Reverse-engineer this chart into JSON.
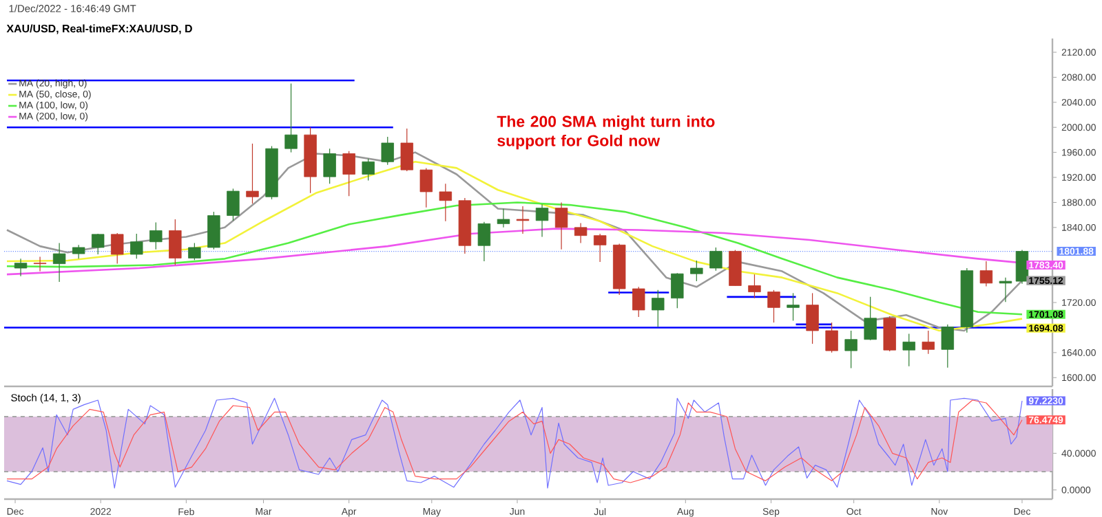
{
  "chart_data": [
    {
      "type": "candlestick",
      "title": "XAU/USD, Real-timeFX:XAU/USD, D",
      "annotations": [
        "1/Dec/2022 - 16:46:49 GMT",
        "The 200 SMA might turn into support for Gold now"
      ],
      "x": [
        "2021-12-03",
        "2021-12-10",
        "2021-12-17",
        "2021-12-24",
        "2021-12-31",
        "2022-01-07",
        "2022-01-14",
        "2022-01-21",
        "2022-01-28",
        "2022-02-04",
        "2022-02-11",
        "2022-02-18",
        "2022-02-25",
        "2022-03-04",
        "2022-03-11",
        "2022-03-18",
        "2022-03-25",
        "2022-04-01",
        "2022-04-08",
        "2022-04-15",
        "2022-04-22",
        "2022-04-29",
        "2022-05-06",
        "2022-05-13",
        "2022-05-20",
        "2022-05-27",
        "2022-06-03",
        "2022-06-10",
        "2022-06-17",
        "2022-06-24",
        "2022-07-01",
        "2022-07-08",
        "2022-07-15",
        "2022-07-22",
        "2022-07-29",
        "2022-08-05",
        "2022-08-12",
        "2022-08-19",
        "2022-08-26",
        "2022-09-02",
        "2022-09-09",
        "2022-09-16",
        "2022-09-23",
        "2022-09-30",
        "2022-10-07",
        "2022-10-14",
        "2022-10-21",
        "2022-10-28",
        "2022-11-04",
        "2022-11-11",
        "2022-11-18",
        "2022-11-25",
        "2022-12-01"
      ],
      "ohlc": [
        [
          1775,
          1790,
          1762,
          1783
        ],
        [
          1783,
          1793,
          1770,
          1782
        ],
        [
          1782,
          1815,
          1753,
          1798
        ],
        [
          1798,
          1812,
          1790,
          1808
        ],
        [
          1808,
          1830,
          1797,
          1829
        ],
        [
          1829,
          1831,
          1782,
          1797
        ],
        [
          1797,
          1830,
          1790,
          1817
        ],
        [
          1817,
          1848,
          1805,
          1835
        ],
        [
          1835,
          1853,
          1780,
          1791
        ],
        [
          1791,
          1815,
          1788,
          1808
        ],
        [
          1808,
          1865,
          1805,
          1859
        ],
        [
          1859,
          1902,
          1851,
          1898
        ],
        [
          1898,
          1974,
          1878,
          1889
        ],
        [
          1889,
          1970,
          1885,
          1966
        ],
        [
          1966,
          2070,
          1960,
          1988
        ],
        [
          1988,
          2000,
          1895,
          1921
        ],
        [
          1921,
          1966,
          1910,
          1958
        ],
        [
          1958,
          1962,
          1890,
          1925
        ],
        [
          1925,
          1950,
          1915,
          1945
        ],
        [
          1945,
          1985,
          1940,
          1975
        ],
        [
          1975,
          1998,
          1930,
          1932
        ],
        [
          1932,
          1935,
          1872,
          1897
        ],
        [
          1897,
          1910,
          1850,
          1883
        ],
        [
          1883,
          1887,
          1798,
          1811
        ],
        [
          1811,
          1849,
          1786,
          1846
        ],
        [
          1846,
          1870,
          1840,
          1853
        ],
        [
          1853,
          1874,
          1830,
          1851
        ],
        [
          1851,
          1877,
          1825,
          1871
        ],
        [
          1871,
          1880,
          1805,
          1840
        ],
        [
          1840,
          1847,
          1815,
          1827
        ],
        [
          1827,
          1830,
          1785,
          1812
        ],
        [
          1812,
          1814,
          1732,
          1742
        ],
        [
          1742,
          1745,
          1697,
          1708
        ],
        [
          1708,
          1740,
          1681,
          1727
        ],
        [
          1727,
          1767,
          1711,
          1766
        ],
        [
          1766,
          1787,
          1754,
          1775
        ],
        [
          1775,
          1808,
          1771,
          1802
        ],
        [
          1802,
          1804,
          1747,
          1747
        ],
        [
          1747,
          1765,
          1727,
          1737
        ],
        [
          1737,
          1740,
          1688,
          1712
        ],
        [
          1712,
          1735,
          1691,
          1716
        ],
        [
          1716,
          1735,
          1654,
          1675
        ],
        [
          1675,
          1688,
          1640,
          1643
        ],
        [
          1643,
          1675,
          1615,
          1661
        ],
        [
          1661,
          1729,
          1660,
          1695
        ],
        [
          1695,
          1698,
          1642,
          1644
        ],
        [
          1644,
          1670,
          1618,
          1657
        ],
        [
          1657,
          1675,
          1638,
          1645
        ],
        [
          1645,
          1685,
          1616,
          1681
        ],
        [
          1681,
          1775,
          1672,
          1771
        ],
        [
          1771,
          1786,
          1746,
          1751
        ],
        [
          1751,
          1760,
          1721,
          1754
        ],
        [
          1754,
          1804,
          1750,
          1801.88
        ]
      ],
      "series": [
        {
          "type": "line",
          "name": "MA (20, high, 0)",
          "color": "#999999",
          "x": [
            "2021-11-28",
            "2021-12-10",
            "2021-12-20",
            "2022-01-05",
            "2022-01-20",
            "2022-02-01",
            "2022-02-15",
            "2022-03-01",
            "2022-03-10",
            "2022-03-20",
            "2022-04-01",
            "2022-04-15",
            "2022-04-25",
            "2022-05-10",
            "2022-05-25",
            "2022-06-10",
            "2022-06-25",
            "2022-07-10",
            "2022-07-25",
            "2022-08-05",
            "2022-08-20",
            "2022-09-05",
            "2022-09-20",
            "2022-10-05",
            "2022-10-20",
            "2022-11-01",
            "2022-11-10",
            "2022-11-20",
            "2022-12-01"
          ],
          "values": [
            1836,
            1810,
            1800,
            1812,
            1820,
            1825,
            1840,
            1890,
            1935,
            1958,
            1955,
            1945,
            1960,
            1925,
            1870,
            1865,
            1860,
            1835,
            1760,
            1745,
            1785,
            1770,
            1735,
            1690,
            1700,
            1680,
            1675,
            1705,
            1755.12
          ],
          "value_labels": [
            null,
            null,
            null,
            null,
            null,
            null,
            null,
            null,
            null,
            null,
            null,
            null,
            null,
            null,
            null,
            null,
            null,
            null,
            null,
            null,
            null,
            null,
            null,
            null,
            null,
            null,
            null,
            null,
            "1755.12"
          ]
        },
        {
          "type": "line",
          "name": "MA (50, close, 0)",
          "color": "#f2f23a",
          "x": [
            "2021-11-28",
            "2021-12-20",
            "2022-01-15",
            "2022-02-01",
            "2022-02-15",
            "2022-03-01",
            "2022-03-20",
            "2022-04-10",
            "2022-04-25",
            "2022-05-10",
            "2022-05-25",
            "2022-06-15",
            "2022-07-01",
            "2022-07-20",
            "2022-08-05",
            "2022-08-20",
            "2022-09-05",
            "2022-09-25",
            "2022-10-15",
            "2022-11-01",
            "2022-11-10",
            "2022-11-20",
            "2022-12-01"
          ],
          "values": [
            1786,
            1787,
            1800,
            1805,
            1815,
            1850,
            1895,
            1925,
            1945,
            1935,
            1900,
            1870,
            1850,
            1810,
            1785,
            1770,
            1760,
            1735,
            1700,
            1675,
            1680,
            1686,
            1694.08
          ],
          "value_labels": [
            null,
            null,
            null,
            null,
            null,
            null,
            null,
            null,
            null,
            null,
            null,
            null,
            null,
            null,
            null,
            null,
            null,
            null,
            null,
            null,
            null,
            null,
            "1694.08"
          ]
        },
        {
          "type": "line",
          "name": "MA (100, low, 0)",
          "color": "#55ee44",
          "x": [
            "2021-11-28",
            "2021-12-20",
            "2022-01-20",
            "2022-02-15",
            "2022-03-10",
            "2022-04-01",
            "2022-04-20",
            "2022-05-10",
            "2022-06-01",
            "2022-06-20",
            "2022-07-10",
            "2022-08-01",
            "2022-08-20",
            "2022-09-05",
            "2022-09-25",
            "2022-10-15",
            "2022-11-01",
            "2022-11-15",
            "2022-12-01"
          ],
          "values": [
            1778,
            1777,
            1780,
            1790,
            1815,
            1845,
            1860,
            1875,
            1880,
            1876,
            1865,
            1840,
            1815,
            1790,
            1760,
            1740,
            1720,
            1705,
            1701.08
          ],
          "value_labels": [
            null,
            null,
            null,
            null,
            null,
            null,
            null,
            null,
            null,
            null,
            null,
            null,
            null,
            null,
            null,
            null,
            null,
            null,
            "1701.08"
          ]
        },
        {
          "type": "line",
          "name": "MA (200, low, 0)",
          "color": "#ee55ee",
          "x": [
            "2021-11-28",
            "2022-01-15",
            "2022-03-01",
            "2022-04-15",
            "2022-05-15",
            "2022-06-15",
            "2022-07-15",
            "2022-08-15",
            "2022-09-15",
            "2022-10-15",
            "2022-11-15",
            "2022-12-01"
          ],
          "values": [
            1765,
            1775,
            1790,
            1810,
            1830,
            1838,
            1836,
            1831,
            1820,
            1805,
            1790,
            1783.4
          ],
          "value_labels": [
            null,
            null,
            null,
            null,
            null,
            null,
            null,
            null,
            null,
            null,
            null,
            "1783.40"
          ]
        },
        {
          "type": "line",
          "color": "#0000ff",
          "x": [
            "2021-11-28",
            "2022-04-03"
          ],
          "values": [
            2075,
            2075
          ]
        },
        {
          "type": "line",
          "color": "#0000ff",
          "x": [
            "2021-11-28",
            "2022-04-17"
          ],
          "values": [
            2000,
            2000
          ]
        },
        {
          "type": "line",
          "color": "#0000ff",
          "x": [
            "2022-07-04",
            "2022-07-26"
          ],
          "values": [
            1736,
            1736
          ]
        },
        {
          "type": "line",
          "color": "#0000ff",
          "x": [
            "2022-08-16",
            "2022-09-10"
          ],
          "values": [
            1729,
            1729
          ]
        },
        {
          "type": "line",
          "color": "#0000ff",
          "x": [
            "2022-09-10",
            "2022-09-23"
          ],
          "values": [
            1685,
            1685
          ]
        }
      ],
      "ref_lines": [
        {
          "axis": "y",
          "value": 1680,
          "color": "#0000ff"
        },
        {
          "axis": "y",
          "value": 1801.88,
          "label": "1801.88",
          "color": "#6a8cff",
          "line_style": "dotted"
        }
      ],
      "xlim": [
        "2021-11-27",
        "2022-12-12"
      ],
      "ylim": [
        1586,
        2142
      ],
      "yticks": [
        {
          "value": 1600,
          "label": "1600.00"
        },
        {
          "value": 1640,
          "label": "1640.00"
        },
        {
          "value": 1720,
          "label": "1720.00"
        },
        {
          "value": 1840,
          "label": "1840.00"
        },
        {
          "value": 1880,
          "label": "1880.00"
        },
        {
          "value": 1920,
          "label": "1920.00"
        },
        {
          "value": 1960,
          "label": "1960.00"
        },
        {
          "value": 2000,
          "label": "2000.00"
        },
        {
          "value": 2040,
          "label": "2040.00"
        },
        {
          "value": 2080,
          "label": "2080.00"
        },
        {
          "value": 2120,
          "label": "2120.00"
        }
      ],
      "legend": "top left",
      "tick_labels": "y"
    },
    {
      "type": "line",
      "title": "Stoch (14, 1, 3)",
      "series": [
        {
          "color": "#6f6fff",
          "x": [
            "2021-11-28",
            "2021-12-03",
            "2021-12-07",
            "2021-12-11",
            "2021-12-13",
            "2021-12-16",
            "2021-12-20",
            "2021-12-22",
            "2021-12-26",
            "2021-12-31",
            "2022-01-03",
            "2022-01-06",
            "2022-01-11",
            "2022-01-17",
            "2022-01-19",
            "2022-01-24",
            "2022-01-28",
            "2022-02-03",
            "2022-02-08",
            "2022-02-12",
            "2022-02-18",
            "2022-02-23",
            "2022-02-25",
            "2022-03-05",
            "2022-03-10",
            "2022-03-14",
            "2022-03-21",
            "2022-03-25",
            "2022-03-28",
            "2022-04-02",
            "2022-04-07",
            "2022-04-13",
            "2022-04-15",
            "2022-04-19",
            "2022-04-22",
            "2022-04-27",
            "2022-05-02",
            "2022-05-09",
            "2022-05-15",
            "2022-05-20",
            "2022-05-24",
            "2022-05-29",
            "2022-06-02",
            "2022-06-06",
            "2022-06-10",
            "2022-06-12",
            "2022-06-16",
            "2022-06-18",
            "2022-06-23",
            "2022-06-28",
            "2022-06-30",
            "2022-07-02",
            "2022-07-04",
            "2022-07-09",
            "2022-07-13",
            "2022-07-19",
            "2022-07-23",
            "2022-07-28",
            "2022-07-29",
            "2022-08-02",
            "2022-08-04",
            "2022-08-08",
            "2022-08-13",
            "2022-08-15",
            "2022-08-18",
            "2022-08-22",
            "2022-08-25",
            "2022-08-30",
            "2022-09-02",
            "2022-09-07",
            "2022-09-11",
            "2022-09-14",
            "2022-09-17",
            "2022-09-21",
            "2022-09-25",
            "2022-09-28",
            "2022-10-03",
            "2022-10-07",
            "2022-10-10",
            "2022-10-14",
            "2022-10-16",
            "2022-10-19",
            "2022-10-22",
            "2022-10-27",
            "2022-10-30",
            "2022-11-02",
            "2022-11-04",
            "2022-11-05",
            "2022-11-10",
            "2022-11-15",
            "2022-11-20",
            "2022-11-25",
            "2022-11-27",
            "2022-11-29",
            "2022-12-01"
          ],
          "values": [
            10,
            6,
            20,
            46,
            20,
            82,
            60,
            88,
            93,
            98,
            65,
            2,
            88,
            72,
            92,
            82,
            3,
            37,
            65,
            98,
            100,
            95,
            50,
            100,
            60,
            22,
            17,
            35,
            20,
            55,
            60,
            98,
            93,
            43,
            10,
            8,
            15,
            3,
            28,
            50,
            65,
            85,
            98,
            60,
            90,
            2,
            73,
            50,
            35,
            30,
            8,
            35,
            5,
            8,
            20,
            12,
            30,
            62,
            100,
            78,
            98,
            85,
            95,
            58,
            12,
            12,
            38,
            5,
            22,
            37,
            47,
            13,
            27,
            22,
            3,
            38,
            98,
            80,
            50,
            35,
            27,
            50,
            5,
            55,
            27,
            45,
            20,
            98,
            100,
            98,
            75,
            78,
            50,
            58,
            97.223
          ],
          "value_labels": [
            null,
            null,
            null,
            null,
            null,
            null,
            null,
            null,
            null,
            null,
            null,
            null,
            null,
            null,
            null,
            null,
            null,
            null,
            null,
            null,
            null,
            null,
            null,
            null,
            null,
            null,
            null,
            null,
            null,
            null,
            null,
            null,
            null,
            null,
            null,
            null,
            null,
            null,
            null,
            null,
            null,
            null,
            null,
            null,
            null,
            null,
            null,
            null,
            null,
            null,
            null,
            null,
            null,
            null,
            null,
            null,
            null,
            null,
            null,
            null,
            null,
            null,
            null,
            null,
            null,
            null,
            null,
            null,
            null,
            null,
            null,
            null,
            null,
            null,
            null,
            null,
            null,
            null,
            null,
            null,
            null,
            null,
            null,
            null,
            null,
            null,
            null,
            null,
            null,
            null,
            null,
            null,
            null,
            null,
            "97.2230"
          ]
        },
        {
          "color": "#ff5555",
          "x": [
            "2021-11-28",
            "2021-12-07",
            "2021-12-13",
            "2021-12-16",
            "2021-12-22",
            "2021-12-28",
            "2022-01-02",
            "2022-01-06",
            "2022-01-08",
            "2022-01-13",
            "2022-01-19",
            "2022-01-24",
            "2022-01-29",
            "2022-02-03",
            "2022-02-08",
            "2022-02-13",
            "2022-02-18",
            "2022-02-24",
            "2022-02-27",
            "2022-03-05",
            "2022-03-09",
            "2022-03-14",
            "2022-03-21",
            "2022-03-27",
            "2022-04-02",
            "2022-04-08",
            "2022-04-14",
            "2022-04-17",
            "2022-04-20",
            "2022-04-25",
            "2022-05-02",
            "2022-05-10",
            "2022-05-15",
            "2022-05-22",
            "2022-05-29",
            "2022-06-03",
            "2022-06-07",
            "2022-06-10",
            "2022-06-13",
            "2022-06-16",
            "2022-06-20",
            "2022-06-25",
            "2022-07-02",
            "2022-07-06",
            "2022-07-12",
            "2022-07-20",
            "2022-07-25",
            "2022-07-30",
            "2022-08-02",
            "2022-08-05",
            "2022-08-10",
            "2022-08-16",
            "2022-08-19",
            "2022-08-23",
            "2022-08-30",
            "2022-09-06",
            "2022-09-12",
            "2022-09-17",
            "2022-09-23",
            "2022-09-27",
            "2022-10-02",
            "2022-10-05",
            "2022-10-10",
            "2022-10-15",
            "2022-10-20",
            "2022-10-24",
            "2022-10-28",
            "2022-11-02",
            "2022-11-05",
            "2022-11-08",
            "2022-11-13",
            "2022-11-18",
            "2022-11-23",
            "2022-11-28",
            "2022-12-01"
          ],
          "values": [
            12,
            12,
            25,
            45,
            70,
            88,
            85,
            40,
            25,
            60,
            82,
            85,
            20,
            25,
            45,
            75,
            92,
            90,
            65,
            85,
            85,
            50,
            25,
            22,
            40,
            55,
            90,
            85,
            55,
            15,
            12,
            12,
            25,
            50,
            75,
            85,
            72,
            75,
            40,
            55,
            50,
            35,
            28,
            12,
            8,
            15,
            25,
            60,
            95,
            85,
            85,
            80,
            45,
            20,
            10,
            25,
            35,
            22,
            10,
            20,
            60,
            90,
            70,
            40,
            35,
            12,
            30,
            35,
            30,
            85,
            98,
            95,
            78,
            60,
            76.4749
          ],
          "value_labels": [
            null,
            null,
            null,
            null,
            null,
            null,
            null,
            null,
            null,
            null,
            null,
            null,
            null,
            null,
            null,
            null,
            null,
            null,
            null,
            null,
            null,
            null,
            null,
            null,
            null,
            null,
            null,
            null,
            null,
            null,
            null,
            null,
            null,
            null,
            null,
            null,
            null,
            null,
            null,
            null,
            null,
            null,
            null,
            null,
            null,
            null,
            null,
            null,
            null,
            null,
            null,
            null,
            null,
            null,
            null,
            null,
            null,
            null,
            null,
            null,
            null,
            null,
            null,
            null,
            null,
            null,
            null,
            null,
            null,
            null,
            null,
            null,
            null,
            null,
            "76.4749"
          ]
        }
      ],
      "bands": [
        {
          "axis": "y",
          "from": 20,
          "to": 80,
          "color": "#dcbfdc"
        }
      ],
      "ref_lines": [
        {
          "axis": "y",
          "value": 20,
          "color": "#a6a6a6",
          "line_style": "dashed"
        },
        {
          "axis": "y",
          "value": 80,
          "color": "#a6a6a6",
          "line_style": "dashed"
        }
      ],
      "xlim": [
        "2021-11-27",
        "2022-12-12"
      ],
      "ylim": [
        -10,
        110
      ],
      "xticks": [
        {
          "value": "2021-12-01",
          "label": "Dec"
        },
        {
          "value": "2022-01-01",
          "label": "2022"
        },
        {
          "value": "2022-02-01",
          "label": "Feb"
        },
        {
          "value": "2022-03-01",
          "label": "Mar"
        },
        {
          "value": "2022-04-01",
          "label": "Apr"
        },
        {
          "value": "2022-05-01",
          "label": "May"
        },
        {
          "value": "2022-06-01",
          "label": "Jun"
        },
        {
          "value": "2022-07-01",
          "label": "Jul"
        },
        {
          "value": "2022-08-01",
          "label": "Aug"
        },
        {
          "value": "2022-09-01",
          "label": "Sep"
        },
        {
          "value": "2022-10-01",
          "label": "Oct"
        },
        {
          "value": "2022-11-01",
          "label": "Nov"
        },
        {
          "value": "2022-12-01",
          "label": "Dec"
        }
      ],
      "yticks": [
        {
          "value": 0,
          "label": "0.0000"
        },
        {
          "value": 40,
          "label": "40.0000"
        }
      ]
    }
  ]
}
